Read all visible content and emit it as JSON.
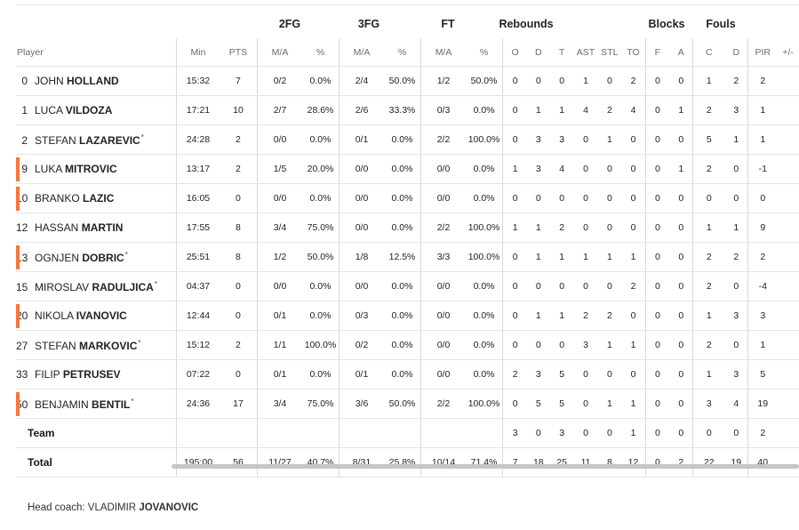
{
  "groups": {
    "fg2": "2FG",
    "fg3": "3FG",
    "ft": "FT",
    "rebounds": "Rebounds",
    "blocks": "Blocks",
    "fouls": "Fouls"
  },
  "columns": {
    "player": "Player",
    "min": "Min",
    "pts": "PTS",
    "fg2_ma": "M/A",
    "fg2_pct": "%",
    "fg3_ma": "M/A",
    "fg3_pct": "%",
    "ft_ma": "M/A",
    "ft_pct": "%",
    "reb_o": "O",
    "reb_d": "D",
    "reb_t": "T",
    "ast": "AST",
    "stl": "STL",
    "to": "TO",
    "blk_f": "F",
    "blk_a": "A",
    "foul_c": "C",
    "foul_d": "D",
    "pir": "PIR",
    "pm": "+/-"
  },
  "players": [
    {
      "num": "0",
      "first": "JOHN",
      "last": "HOLLAND",
      "star": false,
      "marker": false,
      "min": "15:32",
      "pts": "7",
      "fg2_ma": "0/2",
      "fg2_pct": "0.0%",
      "fg3_ma": "2/4",
      "fg3_pct": "50.0%",
      "ft_ma": "1/2",
      "ft_pct": "50.0%",
      "reb_o": "0",
      "reb_d": "0",
      "reb_t": "0",
      "ast": "1",
      "stl": "0",
      "to": "2",
      "blk_f": "0",
      "blk_a": "0",
      "foul_c": "1",
      "foul_d": "2",
      "pir": "2"
    },
    {
      "num": "1",
      "first": "LUCA",
      "last": "VILDOZA",
      "star": false,
      "marker": false,
      "min": "17:21",
      "pts": "10",
      "fg2_ma": "2/7",
      "fg2_pct": "28.6%",
      "fg3_ma": "2/6",
      "fg3_pct": "33.3%",
      "ft_ma": "0/3",
      "ft_pct": "0.0%",
      "reb_o": "0",
      "reb_d": "1",
      "reb_t": "1",
      "ast": "4",
      "stl": "2",
      "to": "4",
      "blk_f": "0",
      "blk_a": "1",
      "foul_c": "2",
      "foul_d": "3",
      "pir": "1"
    },
    {
      "num": "2",
      "first": "STEFAN",
      "last": "LAZAREVIC",
      "star": true,
      "marker": false,
      "min": "24:28",
      "pts": "2",
      "fg2_ma": "0/0",
      "fg2_pct": "0.0%",
      "fg3_ma": "0/1",
      "fg3_pct": "0.0%",
      "ft_ma": "2/2",
      "ft_pct": "100.0%",
      "reb_o": "0",
      "reb_d": "3",
      "reb_t": "3",
      "ast": "0",
      "stl": "1",
      "to": "0",
      "blk_f": "0",
      "blk_a": "0",
      "foul_c": "5",
      "foul_d": "1",
      "pir": "1"
    },
    {
      "num": "9",
      "first": "LUKA",
      "last": "MITROVIC",
      "star": false,
      "marker": true,
      "min": "13:17",
      "pts": "2",
      "fg2_ma": "1/5",
      "fg2_pct": "20.0%",
      "fg3_ma": "0/0",
      "fg3_pct": "0.0%",
      "ft_ma": "0/0",
      "ft_pct": "0.0%",
      "reb_o": "1",
      "reb_d": "3",
      "reb_t": "4",
      "ast": "0",
      "stl": "0",
      "to": "0",
      "blk_f": "0",
      "blk_a": "1",
      "foul_c": "2",
      "foul_d": "0",
      "pir": "-1"
    },
    {
      "num": "10",
      "first": "BRANKO",
      "last": "LAZIC",
      "star": false,
      "marker": true,
      "min": "16:05",
      "pts": "0",
      "fg2_ma": "0/0",
      "fg2_pct": "0.0%",
      "fg3_ma": "0/0",
      "fg3_pct": "0.0%",
      "ft_ma": "0/0",
      "ft_pct": "0.0%",
      "reb_o": "0",
      "reb_d": "0",
      "reb_t": "0",
      "ast": "0",
      "stl": "0",
      "to": "0",
      "blk_f": "0",
      "blk_a": "0",
      "foul_c": "0",
      "foul_d": "0",
      "pir": "0"
    },
    {
      "num": "12",
      "first": "HASSAN",
      "last": "MARTIN",
      "star": false,
      "marker": false,
      "min": "17:55",
      "pts": "8",
      "fg2_ma": "3/4",
      "fg2_pct": "75.0%",
      "fg3_ma": "0/0",
      "fg3_pct": "0.0%",
      "ft_ma": "2/2",
      "ft_pct": "100.0%",
      "reb_o": "1",
      "reb_d": "1",
      "reb_t": "2",
      "ast": "0",
      "stl": "0",
      "to": "0",
      "blk_f": "0",
      "blk_a": "0",
      "foul_c": "1",
      "foul_d": "1",
      "pir": "9"
    },
    {
      "num": "13",
      "first": "OGNJEN",
      "last": "DOBRIC",
      "star": true,
      "marker": true,
      "min": "25:51",
      "pts": "8",
      "fg2_ma": "1/2",
      "fg2_pct": "50.0%",
      "fg3_ma": "1/8",
      "fg3_pct": "12.5%",
      "ft_ma": "3/3",
      "ft_pct": "100.0%",
      "reb_o": "0",
      "reb_d": "1",
      "reb_t": "1",
      "ast": "1",
      "stl": "1",
      "to": "1",
      "blk_f": "0",
      "blk_a": "0",
      "foul_c": "2",
      "foul_d": "2",
      "pir": "2"
    },
    {
      "num": "15",
      "first": "MIROSLAV",
      "last": "RADULJICA",
      "star": true,
      "marker": false,
      "min": "04:37",
      "pts": "0",
      "fg2_ma": "0/0",
      "fg2_pct": "0.0%",
      "fg3_ma": "0/0",
      "fg3_pct": "0.0%",
      "ft_ma": "0/0",
      "ft_pct": "0.0%",
      "reb_o": "0",
      "reb_d": "0",
      "reb_t": "0",
      "ast": "0",
      "stl": "0",
      "to": "2",
      "blk_f": "0",
      "blk_a": "0",
      "foul_c": "2",
      "foul_d": "0",
      "pir": "-4"
    },
    {
      "num": "20",
      "first": "NIKOLA",
      "last": "IVANOVIC",
      "star": false,
      "marker": true,
      "min": "12:44",
      "pts": "0",
      "fg2_ma": "0/1",
      "fg2_pct": "0.0%",
      "fg3_ma": "0/3",
      "fg3_pct": "0.0%",
      "ft_ma": "0/0",
      "ft_pct": "0.0%",
      "reb_o": "0",
      "reb_d": "1",
      "reb_t": "1",
      "ast": "2",
      "stl": "2",
      "to": "0",
      "blk_f": "0",
      "blk_a": "0",
      "foul_c": "1",
      "foul_d": "3",
      "pir": "3"
    },
    {
      "num": "27",
      "first": "STEFAN",
      "last": "MARKOVIC",
      "star": true,
      "marker": false,
      "min": "15:12",
      "pts": "2",
      "fg2_ma": "1/1",
      "fg2_pct": "100.0%",
      "fg3_ma": "0/2",
      "fg3_pct": "0.0%",
      "ft_ma": "0/0",
      "ft_pct": "0.0%",
      "reb_o": "0",
      "reb_d": "0",
      "reb_t": "0",
      "ast": "3",
      "stl": "1",
      "to": "1",
      "blk_f": "0",
      "blk_a": "0",
      "foul_c": "2",
      "foul_d": "0",
      "pir": "1"
    },
    {
      "num": "33",
      "first": "FILIP",
      "last": "PETRUSEV",
      "star": false,
      "marker": false,
      "min": "07:22",
      "pts": "0",
      "fg2_ma": "0/1",
      "fg2_pct": "0.0%",
      "fg3_ma": "0/1",
      "fg3_pct": "0.0%",
      "ft_ma": "0/0",
      "ft_pct": "0.0%",
      "reb_o": "2",
      "reb_d": "3",
      "reb_t": "5",
      "ast": "0",
      "stl": "0",
      "to": "0",
      "blk_f": "0",
      "blk_a": "0",
      "foul_c": "1",
      "foul_d": "3",
      "pir": "5"
    },
    {
      "num": "50",
      "first": "BENJAMIN",
      "last": "BENTIL",
      "star": true,
      "marker": true,
      "min": "24:36",
      "pts": "17",
      "fg2_ma": "3/4",
      "fg2_pct": "75.0%",
      "fg3_ma": "3/6",
      "fg3_pct": "50.0%",
      "ft_ma": "2/2",
      "ft_pct": "100.0%",
      "reb_o": "0",
      "reb_d": "5",
      "reb_t": "5",
      "ast": "0",
      "stl": "1",
      "to": "1",
      "blk_f": "0",
      "blk_a": "0",
      "foul_c": "3",
      "foul_d": "4",
      "pir": "19"
    }
  ],
  "team": {
    "label": "Team",
    "reb_o": "3",
    "reb_d": "0",
    "reb_t": "3",
    "ast": "0",
    "stl": "0",
    "to": "1",
    "blk_f": "0",
    "blk_a": "0",
    "foul_c": "0",
    "foul_d": "0",
    "pir": "2"
  },
  "total": {
    "label": "Total",
    "min": "195:00",
    "pts": "56",
    "fg2_ma": "11/27",
    "fg2_pct": "40.7%",
    "fg3_ma": "8/31",
    "fg3_pct": "25.8%",
    "ft_ma": "10/14",
    "ft_pct": "71.4%",
    "reb_o": "7",
    "reb_d": "18",
    "reb_t": "25",
    "ast": "11",
    "stl": "8",
    "to": "12",
    "blk_f": "0",
    "blk_a": "2",
    "foul_c": "22",
    "foul_d": "19",
    "pir": "40"
  },
  "coach": {
    "label": "Head coach:",
    "first": "VLADIMIR",
    "last": "JOVANOVIC"
  },
  "colors": {
    "marker": "#f2793b",
    "rule": "#e4e4e4",
    "scrollbar": "#c6c6c6"
  }
}
